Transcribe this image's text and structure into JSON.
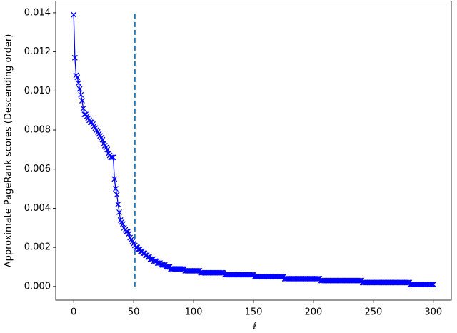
{
  "chart_data": {
    "type": "line",
    "xlabel": "ℓ",
    "ylabel": "Approximate PageRank scores (Descending order)",
    "x": [
      0,
      1,
      2,
      3,
      4,
      5,
      6,
      7,
      8,
      9,
      10,
      11,
      12,
      13,
      14,
      15,
      16,
      17,
      18,
      19,
      20,
      21,
      22,
      23,
      24,
      25,
      26,
      27,
      28,
      29,
      30,
      31,
      32,
      33,
      34,
      35,
      36,
      37,
      38,
      39,
      40,
      41,
      42,
      43,
      44,
      45,
      46,
      47,
      48,
      49,
      50,
      51,
      52,
      53,
      54,
      55,
      56,
      57,
      58,
      59,
      60,
      61,
      62,
      63,
      64,
      65,
      66,
      67,
      68,
      69,
      70,
      71,
      72,
      73,
      74,
      75,
      76,
      77,
      78,
      79,
      80,
      81,
      82,
      83,
      84,
      85,
      86,
      87,
      88,
      89,
      90,
      91,
      92,
      93,
      94,
      95,
      96,
      97,
      98,
      99,
      100,
      101,
      102,
      103,
      104,
      105,
      106,
      107,
      108,
      109,
      110,
      111,
      112,
      113,
      114,
      115,
      116,
      117,
      118,
      119,
      120,
      121,
      122,
      123,
      124,
      125,
      126,
      127,
      128,
      129,
      130,
      131,
      132,
      133,
      134,
      135,
      136,
      137,
      138,
      139,
      140,
      141,
      142,
      143,
      144,
      145,
      146,
      147,
      148,
      149,
      150,
      151,
      152,
      153,
      154,
      155,
      156,
      157,
      158,
      159,
      160,
      161,
      162,
      163,
      164,
      165,
      166,
      167,
      168,
      169,
      170,
      171,
      172,
      173,
      174,
      175,
      176,
      177,
      178,
      179,
      180,
      181,
      182,
      183,
      184,
      185,
      186,
      187,
      188,
      189,
      190,
      191,
      192,
      193,
      194,
      195,
      196,
      197,
      198,
      199,
      200,
      201,
      202,
      203,
      204,
      205,
      206,
      207,
      208,
      209,
      210,
      211,
      212,
      213,
      214,
      215,
      216,
      217,
      218,
      219,
      220,
      221,
      222,
      223,
      224,
      225,
      226,
      227,
      228,
      229,
      230,
      231,
      232,
      233,
      234,
      235,
      236,
      237,
      238,
      239,
      240,
      241,
      242,
      243,
      244,
      245,
      246,
      247,
      248,
      249,
      250,
      251,
      252,
      253,
      254,
      255,
      256,
      257,
      258,
      259,
      260,
      261,
      262,
      263,
      264,
      265,
      266,
      267,
      268,
      269,
      270,
      271,
      272,
      273,
      274,
      275,
      276,
      277,
      278,
      279,
      280,
      281,
      282,
      283,
      284,
      285,
      286,
      287,
      288,
      289,
      290,
      291,
      292,
      293,
      294,
      295,
      296,
      297,
      298,
      299,
      300
    ],
    "series": [
      {
        "color": "#0000ff",
        "marker": "x",
        "values": [
          0.0139,
          0.0117,
          0.0108,
          0.0107,
          0.0104,
          0.0101,
          0.0098,
          0.0095,
          0.0091,
          0.0088,
          0.0088,
          0.0087,
          0.0086,
          0.0085,
          0.0084,
          0.0084,
          0.0083,
          0.0082,
          0.0081,
          0.008,
          0.0079,
          0.0078,
          0.0077,
          0.0076,
          0.0075,
          0.0073,
          0.0072,
          0.0071,
          0.007,
          0.0068,
          0.0067,
          0.0066,
          0.0066,
          0.0066,
          0.0055,
          0.005,
          0.0047,
          0.0042,
          0.0038,
          0.0034,
          0.0033,
          0.0032,
          0.003,
          0.0029,
          0.0028,
          0.0028,
          0.0027,
          0.0025,
          0.0024,
          0.0023,
          0.0022,
          0.0021,
          0.002,
          0.002,
          0.0019,
          0.0019,
          0.0018,
          0.0018,
          0.0017,
          0.0017,
          0.0016,
          0.0016,
          0.0015,
          0.0015,
          0.0014,
          0.0014,
          0.0014,
          0.0013,
          0.0013,
          0.0013,
          0.0012,
          0.0012,
          0.0012,
          0.0011,
          0.0011,
          0.0011,
          0.0011,
          0.001,
          0.001,
          0.001,
          0.001,
          0.0009,
          0.0009,
          0.0009,
          0.0009,
          0.0009,
          0.0009,
          0.0009,
          0.0009,
          0.0009,
          0.0009,
          0.0009,
          0.0009,
          0.0008,
          0.0008,
          0.0008,
          0.0008,
          0.0008,
          0.0008,
          0.0008,
          0.0008,
          0.0008,
          0.0008,
          0.0008,
          0.0008,
          0.0008,
          0.0007,
          0.0007,
          0.0007,
          0.0007,
          0.0007,
          0.0007,
          0.0007,
          0.0007,
          0.0007,
          0.0007,
          0.0007,
          0.0007,
          0.0007,
          0.0007,
          0.0007,
          0.0007,
          0.0007,
          0.0007,
          0.0007,
          0.0007,
          0.0006,
          0.0006,
          0.0006,
          0.0006,
          0.0006,
          0.0006,
          0.0006,
          0.0006,
          0.0006,
          0.0006,
          0.0006,
          0.0006,
          0.0006,
          0.0006,
          0.0006,
          0.0006,
          0.0006,
          0.0006,
          0.0006,
          0.0006,
          0.0006,
          0.0006,
          0.0006,
          0.0006,
          0.0006,
          0.0005,
          0.0005,
          0.0005,
          0.0005,
          0.0005,
          0.0005,
          0.0005,
          0.0005,
          0.0005,
          0.0005,
          0.0005,
          0.0005,
          0.0005,
          0.0005,
          0.0005,
          0.0005,
          0.0005,
          0.0005,
          0.0005,
          0.0005,
          0.0005,
          0.0005,
          0.0005,
          0.0005,
          0.0005,
          0.0004,
          0.0004,
          0.0004,
          0.0004,
          0.0004,
          0.0004,
          0.0004,
          0.0004,
          0.0004,
          0.0004,
          0.0004,
          0.0004,
          0.0004,
          0.0004,
          0.0004,
          0.0004,
          0.0004,
          0.0004,
          0.0004,
          0.0004,
          0.0004,
          0.0004,
          0.0004,
          0.0004,
          0.0004,
          0.0004,
          0.0004,
          0.0004,
          0.0004,
          0.0004,
          0.0003,
          0.0003,
          0.0003,
          0.0003,
          0.0003,
          0.0003,
          0.0003,
          0.0003,
          0.0003,
          0.0003,
          0.0003,
          0.0003,
          0.0003,
          0.0003,
          0.0003,
          0.0003,
          0.0003,
          0.0003,
          0.0003,
          0.0003,
          0.0003,
          0.0003,
          0.0003,
          0.0003,
          0.0003,
          0.0003,
          0.0003,
          0.0003,
          0.0003,
          0.0003,
          0.0003,
          0.0003,
          0.0003,
          0.0003,
          0.0003,
          0.0002,
          0.0002,
          0.0002,
          0.0002,
          0.0002,
          0.0002,
          0.0002,
          0.0002,
          0.0002,
          0.0002,
          0.0002,
          0.0002,
          0.0002,
          0.0002,
          0.0002,
          0.0002,
          0.0002,
          0.0002,
          0.0002,
          0.0002,
          0.0002,
          0.0002,
          0.0002,
          0.0002,
          0.0002,
          0.0002,
          0.0002,
          0.0002,
          0.0002,
          0.0002,
          0.0002,
          0.0002,
          0.0002,
          0.0002,
          0.0002,
          0.0002,
          0.0002,
          0.0002,
          0.0002,
          0.0002,
          0.0001,
          0.0001,
          0.0001,
          0.0001,
          0.0001,
          0.0001,
          0.0001,
          0.0001,
          0.0001,
          0.0001,
          0.0001,
          0.0001,
          0.0001,
          0.0001,
          0.0001,
          0.0001,
          0.0001,
          0.0001,
          0.0001,
          0.0001
        ]
      }
    ],
    "vline": {
      "x": 51,
      "ymin": 0,
      "ymax": 0.014,
      "color": "#1f77b4",
      "style": "dashed"
    },
    "xlim": [
      -15,
      315
    ],
    "ylim": [
      -0.0007,
      0.0146
    ],
    "xticks": [
      0,
      50,
      100,
      150,
      200,
      250,
      300
    ],
    "yticks": [
      {
        "value": 0,
        "label": "0.000"
      },
      {
        "value": 0.002,
        "label": "0.002"
      },
      {
        "value": 0.004,
        "label": "0.004"
      },
      {
        "value": 0.006,
        "label": "0.006"
      },
      {
        "value": 0.008,
        "label": "0.008"
      },
      {
        "value": 0.01,
        "label": "0.010"
      },
      {
        "value": 0.012,
        "label": "0.012"
      },
      {
        "value": 0.014,
        "label": "0.014"
      }
    ],
    "grid": false
  }
}
